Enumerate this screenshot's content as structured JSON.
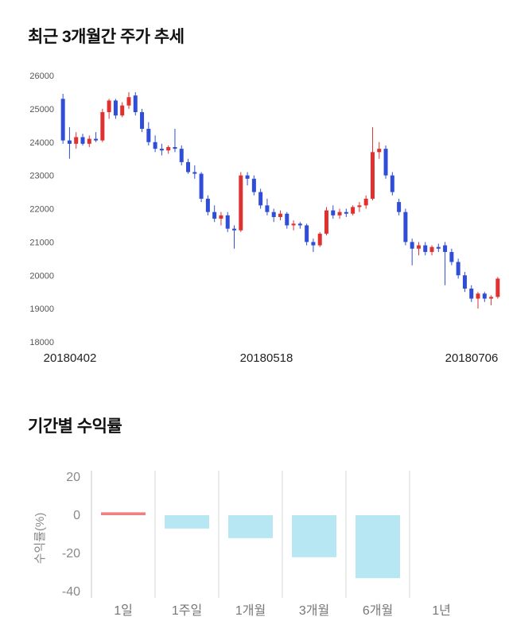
{
  "sections": {
    "price_trend": {
      "title": "최근 3개월간 주가 추세"
    },
    "returns": {
      "title": "기간별 수익률"
    }
  },
  "chart_data": [
    {
      "type": "candlestick",
      "title": "최근 3개월간 주가 추세",
      "ylim": [
        18000,
        26000
      ],
      "y_ticks": [
        26000,
        25000,
        24000,
        23000,
        22000,
        21000,
        20000,
        19000,
        18000
      ],
      "x_tick_labels": [
        "20180402",
        "20180518",
        "20180706"
      ],
      "up_color": "#e03131",
      "down_color": "#2f4dd6",
      "legend": "none",
      "grid": "off",
      "candles_ohlc": [
        [
          25300,
          25450,
          23950,
          24050
        ],
        [
          24050,
          24450,
          23500,
          23950
        ],
        [
          23950,
          24300,
          23800,
          24150
        ],
        [
          24150,
          24250,
          23900,
          23950
        ],
        [
          23950,
          24200,
          23850,
          24100
        ],
        [
          24100,
          24300,
          24000,
          24050
        ],
        [
          24050,
          25000,
          24000,
          24900
        ],
        [
          24900,
          25300,
          24700,
          25250
        ],
        [
          25250,
          25300,
          24700,
          24800
        ],
        [
          24800,
          25200,
          24750,
          25100
        ],
        [
          25100,
          25500,
          25000,
          25350
        ],
        [
          25400,
          25500,
          24800,
          24900
        ],
        [
          24900,
          25000,
          24300,
          24400
        ],
        [
          24400,
          24600,
          23900,
          24000
        ],
        [
          24000,
          24200,
          23700,
          23800
        ],
        [
          23800,
          23950,
          23600,
          23750
        ],
        [
          23750,
          23900,
          23650,
          23850
        ],
        [
          23850,
          24400,
          23700,
          23800
        ],
        [
          23800,
          23900,
          23300,
          23400
        ],
        [
          23400,
          23500,
          23050,
          23100
        ],
        [
          23100,
          23300,
          22900,
          23050
        ],
        [
          23050,
          23100,
          22200,
          22300
        ],
        [
          22300,
          22400,
          21800,
          21900
        ],
        [
          21900,
          22100,
          21600,
          21700
        ],
        [
          21700,
          21900,
          21500,
          21800
        ],
        [
          21800,
          21900,
          21300,
          21400
        ],
        [
          21400,
          21500,
          20800,
          21350
        ],
        [
          21350,
          23100,
          21300,
          23000
        ],
        [
          23000,
          23100,
          22700,
          22900
        ],
        [
          22900,
          23000,
          22400,
          22500
        ],
        [
          22500,
          22600,
          22000,
          22100
        ],
        [
          22100,
          22300,
          21800,
          21900
        ],
        [
          21900,
          22000,
          21600,
          21750
        ],
        [
          21750,
          21950,
          21650,
          21850
        ],
        [
          21850,
          21900,
          21400,
          21500
        ],
        [
          21500,
          21650,
          21350,
          21550
        ],
        [
          21550,
          21600,
          21400,
          21500
        ],
        [
          21500,
          21550,
          20900,
          21000
        ],
        [
          21000,
          21100,
          20700,
          20900
        ],
        [
          20900,
          21300,
          20850,
          21250
        ],
        [
          21250,
          22050,
          21200,
          21950
        ],
        [
          21950,
          22100,
          21700,
          21800
        ],
        [
          21800,
          22000,
          21700,
          21900
        ],
        [
          21900,
          22000,
          21750,
          21850
        ],
        [
          21850,
          22100,
          21800,
          22050
        ],
        [
          22050,
          22200,
          21900,
          22100
        ],
        [
          22100,
          22400,
          22000,
          22300
        ],
        [
          22300,
          24450,
          22250,
          23700
        ],
        [
          23700,
          24000,
          23500,
          23800
        ],
        [
          23800,
          23900,
          22900,
          23000
        ],
        [
          23000,
          23100,
          22400,
          22500
        ],
        [
          22200,
          22300,
          21800,
          21900
        ],
        [
          21900,
          22000,
          20900,
          21000
        ],
        [
          21000,
          21100,
          20300,
          20800
        ],
        [
          20800,
          21000,
          20600,
          20900
        ],
        [
          20900,
          21000,
          20600,
          20700
        ],
        [
          20700,
          20900,
          20600,
          20850
        ],
        [
          20850,
          20950,
          20700,
          20800
        ],
        [
          20900,
          21000,
          19700,
          20700
        ],
        [
          20700,
          20800,
          20300,
          20400
        ],
        [
          20400,
          20500,
          19900,
          20000
        ],
        [
          20000,
          20100,
          19500,
          19600
        ],
        [
          19600,
          19700,
          19200,
          19300
        ],
        [
          19300,
          19500,
          19000,
          19450
        ],
        [
          19450,
          19500,
          19200,
          19300
        ],
        [
          19300,
          19400,
          19100,
          19350
        ],
        [
          19350,
          19950,
          19300,
          19900
        ]
      ]
    },
    {
      "type": "bar",
      "title": "기간별 수익률",
      "categories": [
        "1일",
        "1주일",
        "1개월",
        "3개월",
        "6개월",
        "1년"
      ],
      "values": [
        1.5,
        -7,
        -12,
        -22,
        -33,
        0
      ],
      "bar_colors": [
        "#f08080",
        "#b7e7f2",
        "#b7e7f2",
        "#b7e7f2",
        "#b7e7f2",
        "#b7e7f2"
      ],
      "ylabel": "수익률(%)",
      "ylim": [
        -40,
        20
      ],
      "y_ticks": [
        20,
        0,
        -20,
        -40
      ],
      "grid": "vertical",
      "grid_color": "#d9d9d9",
      "axis_color": "#c7c7c7",
      "legend": "none"
    }
  ]
}
